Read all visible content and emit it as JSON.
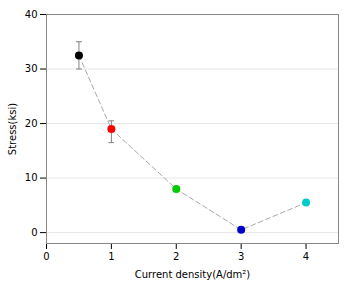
{
  "chart_data": {
    "type": "scatter",
    "x": [
      0.5,
      1.0,
      2.0,
      3.0,
      4.0
    ],
    "values": [
      32.5,
      19.0,
      8.0,
      0.5,
      5.5
    ],
    "error_upper": [
      2.5,
      1.5,
      0.0,
      0.0,
      0.0
    ],
    "error_lower": [
      2.5,
      2.5,
      0.0,
      0.0,
      0.0
    ],
    "colors": [
      "#000000",
      "#ff0000",
      "#00cc00",
      "#0000cc",
      "#00cccc"
    ],
    "color": "#aaaaaa",
    "line_style": "dashed",
    "marker": "circle",
    "xlabel": "Current density(A/dm²)",
    "ylabel": "Stress(ksi)",
    "xlim": [
      0,
      4.5
    ],
    "ylim": [
      -2,
      40
    ],
    "xticks": [
      0,
      1,
      2,
      3,
      4
    ],
    "yticks": [
      0,
      10,
      20,
      30,
      40
    ],
    "grid": "y"
  }
}
